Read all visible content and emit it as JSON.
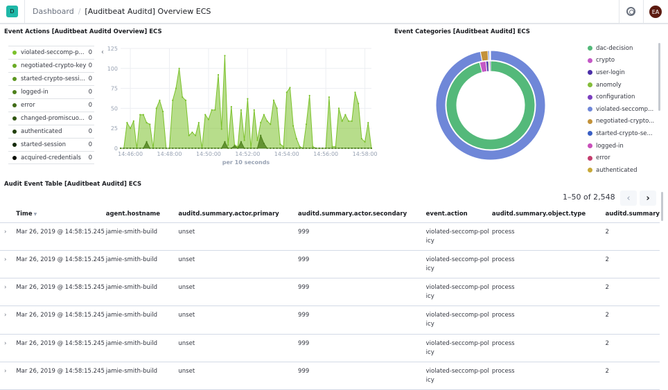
{
  "header": {
    "logo_letter": "D",
    "breadcrumb_root": "Dashboard",
    "breadcrumb_separator": "/",
    "title": "[Auditbeat Auditd] Overview ECS",
    "help_icon": "lifebuoy-icon",
    "avatar_initials": "EA"
  },
  "event_actions": {
    "title": "Event Actions [Auditbeat Auditd Overview] ECS",
    "legend": [
      {
        "label": "violated-seccomp-p...",
        "value": "0",
        "color": "#7bc12b"
      },
      {
        "label": "negotiated-crypto-key",
        "value": "0",
        "color": "#6aab24"
      },
      {
        "label": "started-crypto-sessi...",
        "value": "0",
        "color": "#5b9620"
      },
      {
        "label": "logged-in",
        "value": "0",
        "color": "#4d811b"
      },
      {
        "label": "error",
        "value": "0",
        "color": "#3f6b16"
      },
      {
        "label": "changed-promiscuo...",
        "value": "0",
        "color": "#305511"
      },
      {
        "label": "authenticated",
        "value": "0",
        "color": "#22400b"
      },
      {
        "label": "started-session",
        "value": "0",
        "color": "#142a06"
      },
      {
        "label": "acquired-credentials",
        "value": "0",
        "color": "#080d02"
      }
    ]
  },
  "chart_data": [
    {
      "type": "area",
      "xlabel": "per 10 seconds",
      "ylim": [
        0,
        125
      ],
      "yticks": [
        "0",
        "25",
        "50",
        "75",
        "100",
        "125"
      ],
      "xticks": [
        "14:46:00",
        "14:48:00",
        "14:50:00",
        "14:52:00",
        "14:54:00",
        "14:56:00",
        "14:58:00"
      ],
      "x_start": "14:45:30",
      "x_step_seconds": 10,
      "grid": true,
      "series": [
        {
          "color": "#7bc12b",
          "values": [
            0,
            0,
            32,
            25,
            34,
            0,
            42,
            42,
            32,
            30,
            0,
            50,
            60,
            46,
            0,
            0,
            60,
            75,
            100,
            64,
            60,
            16,
            20,
            16,
            32,
            0,
            42,
            36,
            48,
            48,
            92,
            24,
            116,
            4,
            52,
            4,
            2,
            48,
            10,
            62,
            0,
            48,
            10,
            32,
            42,
            34,
            30,
            60,
            50,
            5,
            2,
            70,
            76,
            28,
            12,
            2,
            0,
            30,
            66,
            2,
            0,
            0,
            0,
            0,
            64,
            2,
            2,
            50,
            34,
            42,
            34,
            34,
            70,
            56,
            12,
            8,
            32,
            0
          ]
        },
        {
          "color": "#4d811b",
          "values": [
            0,
            0,
            0,
            0,
            0,
            0,
            0,
            0,
            8,
            0,
            0,
            0,
            0,
            0,
            0,
            0,
            0,
            0,
            0,
            0,
            0,
            0,
            0,
            0,
            0,
            0,
            0,
            0,
            0,
            0,
            0,
            0,
            8,
            0,
            0,
            3,
            0,
            8,
            0,
            0,
            0,
            0,
            0,
            16,
            6,
            0,
            0,
            0,
            0,
            0,
            0,
            0,
            0,
            0,
            0,
            0,
            0,
            0,
            0,
            0,
            0,
            0,
            0,
            0,
            0,
            0,
            0,
            0,
            0,
            0,
            0,
            0,
            0,
            0,
            0,
            0,
            0,
            0
          ]
        }
      ]
    },
    {
      "type": "pie",
      "title": "Event Categories [Auditbeat Auditd] ECS",
      "donut": true,
      "inner_ring": [
        {
          "label": "dac-decision",
          "value": 96,
          "color": "#54b97a"
        },
        {
          "label": "crypto",
          "value": 2.3,
          "color": "#c459c6"
        },
        {
          "label": "user-login",
          "value": 0.9,
          "color": "#4b2fa8"
        },
        {
          "label": "anomoly",
          "value": 0.4,
          "color": "#84bd3a"
        },
        {
          "label": "configuration",
          "value": 0.4,
          "color": "#7b3fbf"
        }
      ],
      "outer_ring": [
        {
          "label": "violated-seccomp...",
          "value": 97,
          "color": "#6f87d8"
        },
        {
          "label": "negotiated-crypto...",
          "value": 2.2,
          "color": "#c3923a"
        },
        {
          "label": "started-crypto-se...",
          "value": 0.4,
          "color": "#3a5fc4"
        },
        {
          "label": "logged-in",
          "value": 0.2,
          "color": "#c94fba"
        },
        {
          "label": "error",
          "value": 0.1,
          "color": "#c43d6e"
        },
        {
          "label": "authenticated",
          "value": 0.1,
          "color": "#c8a93a"
        }
      ],
      "legend": [
        {
          "label": "dac-decision",
          "color": "#54b97a"
        },
        {
          "label": "crypto",
          "color": "#c459c6"
        },
        {
          "label": "user-login",
          "color": "#4b2fa8"
        },
        {
          "label": "anomoly",
          "color": "#84bd3a"
        },
        {
          "label": "configuration",
          "color": "#7b3fbf"
        },
        {
          "label": "violated-seccomp...",
          "color": "#6f87d8"
        },
        {
          "label": "negotiated-crypto...",
          "color": "#c3923a"
        },
        {
          "label": "started-crypto-se...",
          "color": "#3a5fc4"
        },
        {
          "label": "logged-in",
          "color": "#c94fba"
        },
        {
          "label": "error",
          "color": "#c43d6e"
        },
        {
          "label": "authenticated",
          "color": "#c8a93a"
        }
      ]
    }
  ],
  "audit_table": {
    "title": "Audit Event Table [Auditbeat Auditd] ECS",
    "pagination": "1–50 of 2,548",
    "columns": [
      "Time",
      "agent.hostname",
      "auditd.summary.actor.primary",
      "auditd.summary.actor.secondary",
      "event.action",
      "auditd.summary.object.type",
      "auditd.summary"
    ],
    "rows": [
      [
        "Mar 26, 2019 @ 14:58:15.245",
        "jamie-smith-build",
        "unset",
        "999",
        "violated-seccomp-policy",
        "process",
        "2"
      ],
      [
        "Mar 26, 2019 @ 14:58:15.245",
        "jamie-smith-build",
        "unset",
        "999",
        "violated-seccomp-policy",
        "process",
        "2"
      ],
      [
        "Mar 26, 2019 @ 14:58:15.245",
        "jamie-smith-build",
        "unset",
        "999",
        "violated-seccomp-policy",
        "process",
        "2"
      ],
      [
        "Mar 26, 2019 @ 14:58:15.245",
        "jamie-smith-build",
        "unset",
        "999",
        "violated-seccomp-policy",
        "process",
        "2"
      ],
      [
        "Mar 26, 2019 @ 14:58:15.245",
        "jamie-smith-build",
        "unset",
        "999",
        "violated-seccomp-policy",
        "process",
        "2"
      ],
      [
        "Mar 26, 2019 @ 14:58:15.245",
        "jamie-smith-build",
        "unset",
        "999",
        "violated-seccomp-policy",
        "process",
        "2"
      ]
    ]
  }
}
